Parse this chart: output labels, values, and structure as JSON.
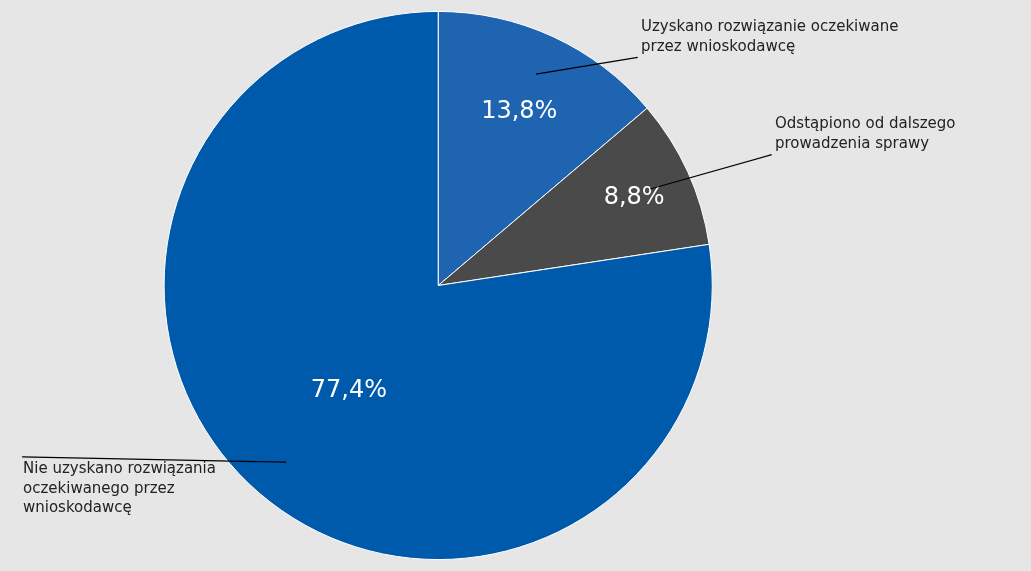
{
  "chart_data": {
    "type": "pie",
    "categories": [
      "Uzyskano rozwiązanie oczekiwane przez wnioskodawcę",
      "Odstąpiono od dalszego prowadzenia sprawy",
      "Nie uzyskano rozwiązania oczekiwanego przez wnioskodawcę"
    ],
    "values": [
      13.8,
      8.8,
      77.4
    ],
    "value_labels": [
      "13,8%",
      "8,8%",
      "77,4%"
    ],
    "colors": [
      "#1f64b0",
      "#4a4a4a",
      "#005aab"
    ],
    "legend": false
  }
}
